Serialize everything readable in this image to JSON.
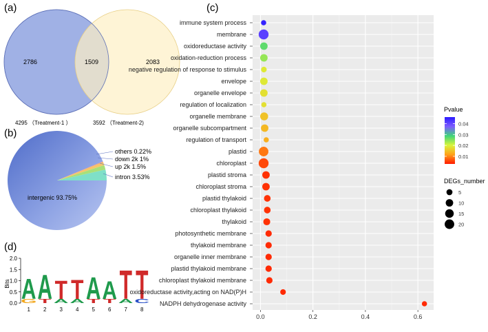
{
  "panel_a": {
    "label": "(a)",
    "left_only": "2786",
    "overlap": "1509",
    "right_only": "2083",
    "caption_left": "4295 （Treatment-1 ）",
    "caption_right": "3592 （Treatment-2)",
    "colors": {
      "left": "#8fa3e0",
      "right": "#fdefc4"
    }
  },
  "panel_b": {
    "label": "(b)",
    "slices": [
      {
        "name": "intergenic",
        "label": "intergenic 93.75%",
        "value": 93.75,
        "color": "#6e86d6"
      },
      {
        "name": "intron",
        "label": "intron 3.53%",
        "value": 3.53,
        "color": "#7fe0c8"
      },
      {
        "name": "up-2k",
        "label": "up 2k 1.5%",
        "value": 1.5,
        "color": "#a8e07a"
      },
      {
        "name": "down-2k",
        "label": "down 2k 1%",
        "value": 1.0,
        "color": "#f5c66a"
      },
      {
        "name": "others",
        "label": "others 0.22%",
        "value": 0.22,
        "color": "#f59a7a"
      }
    ]
  },
  "panel_d": {
    "label": "(d)",
    "ylabel": "Bits",
    "yticks": [
      "0.0",
      "0.5",
      "1.0",
      "1.5",
      "2.0"
    ],
    "positions": [
      "1",
      "2",
      "3",
      "4",
      "5",
      "6",
      "7",
      "8"
    ],
    "main_letters": [
      "A",
      "A",
      "T",
      "T",
      "A",
      "A",
      "T",
      "T"
    ],
    "letter_bits": [
      0.92,
      1.12,
      0.85,
      0.88,
      1.02,
      0.82,
      1.32,
      1.32
    ],
    "minor_letters": [
      "G",
      "T",
      "A",
      "A",
      "T",
      "T",
      "A",
      "C"
    ]
  },
  "chart_data": {
    "type": "scatter",
    "panel_label": "(c)",
    "categories": [
      "immune system process",
      "membrane",
      "oxidoreductase activity",
      "oxidation-reduction process",
      "negative regulation of response to stimulus",
      "envelope",
      "organelle envelope",
      "regulation of localization",
      "organelle membrane",
      "organelle subcompartment",
      "regulation of transport",
      "plastid",
      "chloroplast",
      "plastid stroma",
      "chloroplast stroma",
      "plastid thylakoid",
      "chloroplast thylakoid",
      "thylakoid",
      "photosynthetic membrane",
      "thylakoid membrane",
      "organelle inner membrane",
      "plastid thylakoid membrane",
      "chloroplast thylakoid membrane",
      "oxidoreductase activity,acting on NAD(P)H",
      "NADPH dehydrogenase activity"
    ],
    "x": [
      0.012,
      0.012,
      0.013,
      0.013,
      0.013,
      0.013,
      0.013,
      0.013,
      0.014,
      0.016,
      0.022,
      0.012,
      0.012,
      0.021,
      0.021,
      0.026,
      0.026,
      0.024,
      0.031,
      0.031,
      0.031,
      0.031,
      0.034,
      0.086,
      0.625
    ],
    "deg_number": [
      3,
      22,
      10,
      10,
      4,
      10,
      10,
      3,
      12,
      10,
      3,
      20,
      22,
      10,
      10,
      7,
      7,
      8,
      6,
      6,
      6,
      6,
      6,
      4,
      3
    ],
    "pvalue": [
      0.045,
      0.041,
      0.027,
      0.024,
      0.019,
      0.019,
      0.018,
      0.018,
      0.015,
      0.014,
      0.013,
      0.009,
      0.006,
      0.0045,
      0.0045,
      0.0045,
      0.0045,
      0.0045,
      0.004,
      0.004,
      0.004,
      0.004,
      0.004,
      0.004,
      0.004
    ],
    "xticks": [
      "0.0",
      "0.2",
      "0.4",
      "0.6"
    ],
    "xtick_values": [
      0,
      0.2,
      0.4,
      0.6
    ],
    "xlim": [
      -0.03,
      0.66
    ],
    "legend_color": {
      "title": "Pvalue",
      "labels": [
        "0.04",
        "0.03",
        "0.02",
        "0.01"
      ],
      "values": [
        0.04,
        0.03,
        0.02,
        0.01
      ],
      "range": [
        0.003,
        0.046
      ]
    },
    "legend_size": {
      "title": "DEGs_number",
      "labels": [
        "5",
        "10",
        "15",
        "20"
      ],
      "values": [
        5,
        10,
        15,
        20
      ]
    },
    "legend_position": "right",
    "grid": true,
    "background": "#ebebeb"
  }
}
